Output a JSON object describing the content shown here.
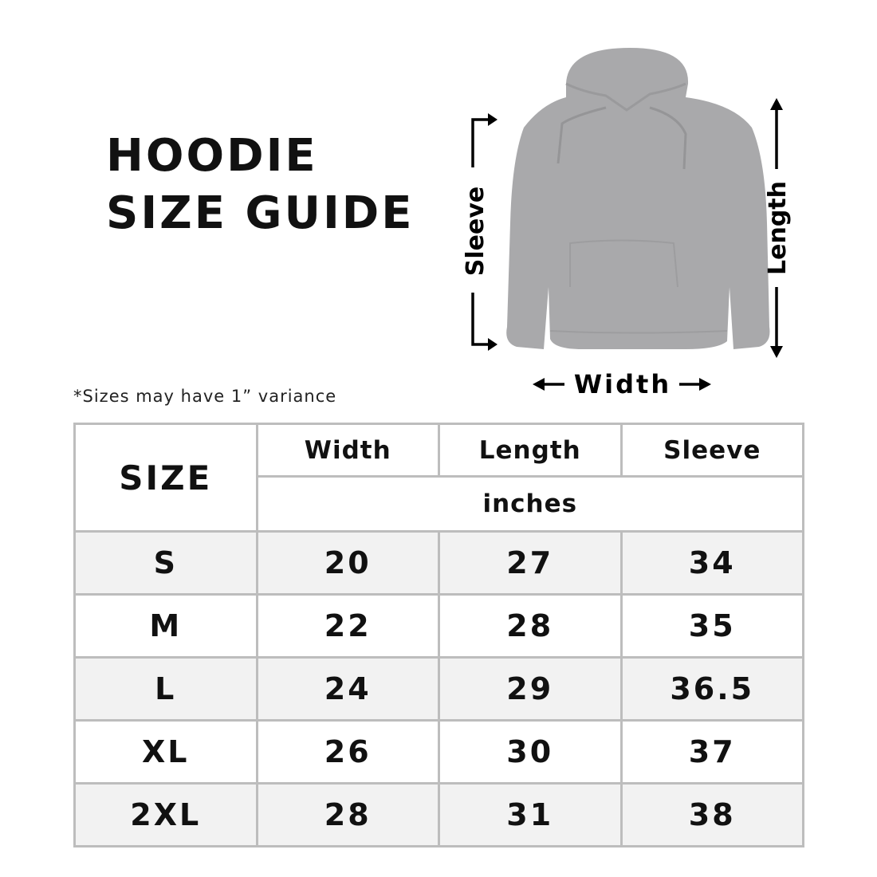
{
  "title": {
    "line1": "HOODIE",
    "line2": "SIZE GUIDE"
  },
  "diagram": {
    "sleeve_label": "Sleeve",
    "length_label": "Length",
    "width_label": "Width",
    "garment_color": "#a9a9ab"
  },
  "note": "*Sizes may have 1” variance",
  "table": {
    "size_header": "SIZE",
    "columns": [
      "Width",
      "Length",
      "Sleeve"
    ],
    "unit": "inches",
    "rows": [
      {
        "size": "S",
        "width": "20",
        "length": "27",
        "sleeve": "34"
      },
      {
        "size": "M",
        "width": "22",
        "length": "28",
        "sleeve": "35"
      },
      {
        "size": "L",
        "width": "24",
        "length": "29",
        "sleeve": "36.5"
      },
      {
        "size": "XL",
        "width": "26",
        "length": "30",
        "sleeve": "37"
      },
      {
        "size": "2XL",
        "width": "28",
        "length": "31",
        "sleeve": "38"
      }
    ]
  }
}
